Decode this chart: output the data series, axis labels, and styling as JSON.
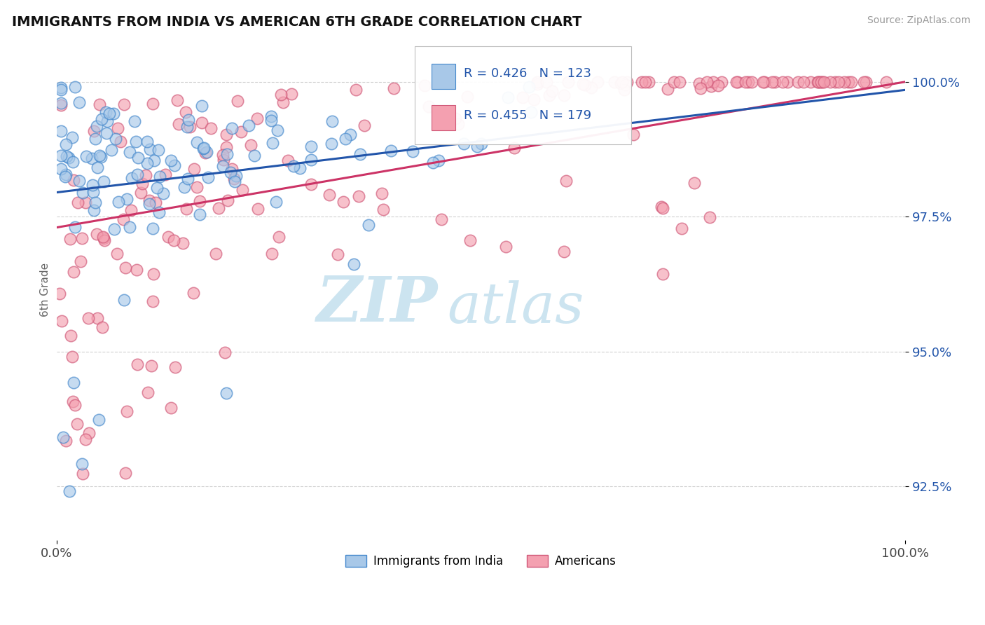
{
  "title": "IMMIGRANTS FROM INDIA VS AMERICAN 6TH GRADE CORRELATION CHART",
  "source_text": "Source: ZipAtlas.com",
  "ylabel": "6th Grade",
  "legend_labels": [
    "Immigrants from India",
    "Americans"
  ],
  "r_india": 0.426,
  "n_india": 123,
  "r_americans": 0.455,
  "n_americans": 179,
  "blue_fill": "#a8c8e8",
  "blue_edge": "#4488cc",
  "pink_fill": "#f4a0b0",
  "pink_edge": "#d05878",
  "blue_line_color": "#2255aa",
  "pink_line_color": "#cc3366",
  "legend_r_color": "#2255aa",
  "xlim": [
    0.0,
    100.0
  ],
  "ylim": [
    91.5,
    100.8
  ],
  "yticks": [
    92.5,
    95.0,
    97.5,
    100.0
  ],
  "background_color": "#ffffff",
  "grid_color": "#cccccc",
  "watermark_zip": "ZIP",
  "watermark_atlas": "atlas",
  "watermark_color": "#cce4f0"
}
